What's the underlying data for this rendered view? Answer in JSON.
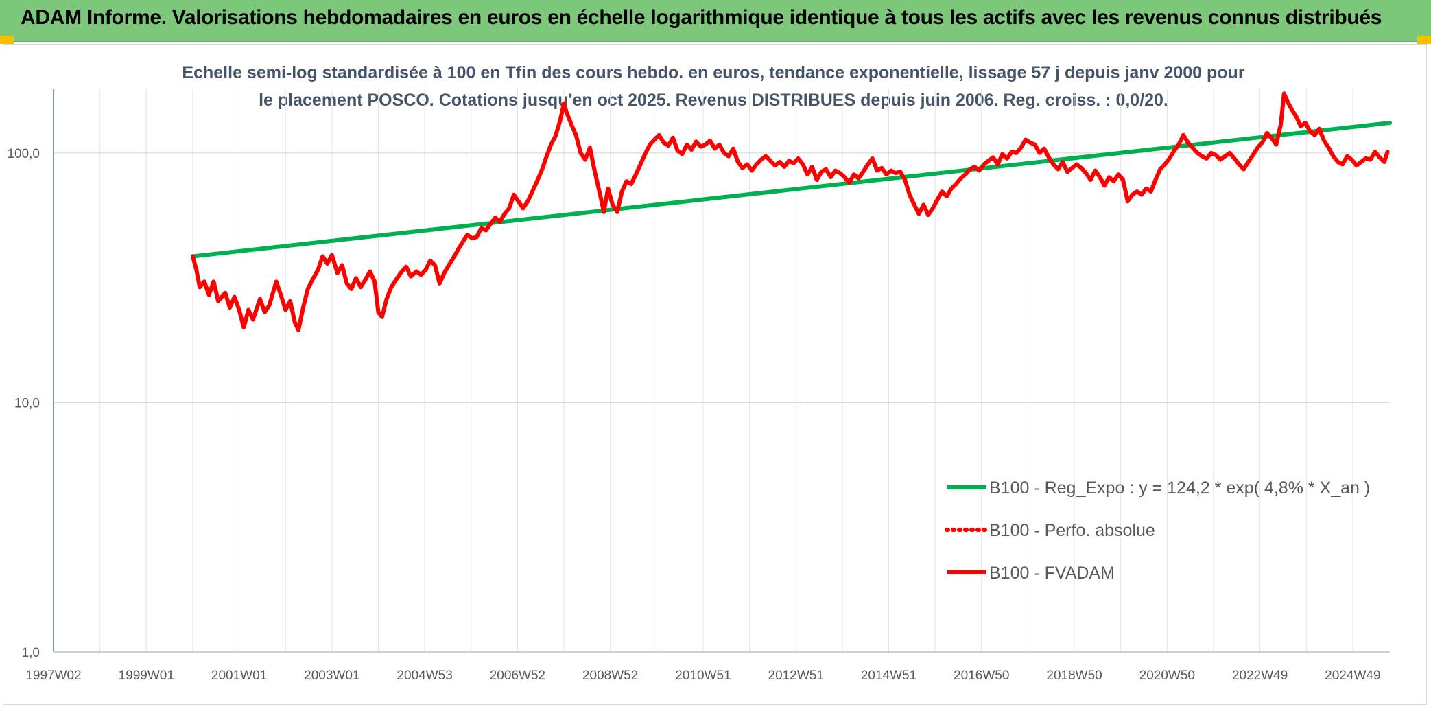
{
  "header": {
    "title": "ADAM Informe. Valorisations hebdomadaires en euros en échelle logarithmique identique à tous les actifs avec les revenus connus distribués",
    "background": "#7dc77a"
  },
  "chart_data": {
    "type": "line",
    "title": "Echelle semi-log standardisée à 100 en Tfin des cours hebdo. en euros, tendance exponentielle, lissage 57 j depuis janv 2000 pour le placement POSCO. Cotations jusqu'en oct 2025. Revenus DISTRIBUES depuis juin 2006. Reg. croiss. : 0,0/20.",
    "y_scale": "log",
    "ylim": [
      1,
      180
    ],
    "y_ticks": [
      "1,0",
      "10,0",
      "100,0"
    ],
    "xlim": [
      1997.0,
      2025.8
    ],
    "x_ticks": [
      {
        "label": "1997W02",
        "x": 1997.0
      },
      {
        "label": "1999W01",
        "x": 1999.0
      },
      {
        "label": "2001W01",
        "x": 2001.0
      },
      {
        "label": "2003W01",
        "x": 2003.0
      },
      {
        "label": "2004W53",
        "x": 2005.0
      },
      {
        "label": "2006W52",
        "x": 2007.0
      },
      {
        "label": "2008W52",
        "x": 2009.0
      },
      {
        "label": "2010W51",
        "x": 2011.0
      },
      {
        "label": "2012W51",
        "x": 2013.0
      },
      {
        "label": "2014W51",
        "x": 2015.0
      },
      {
        "label": "2016W50",
        "x": 2017.0
      },
      {
        "label": "2018W50",
        "x": 2019.0
      },
      {
        "label": "2020W50",
        "x": 2021.0
      },
      {
        "label": "2022W49",
        "x": 2023.0
      },
      {
        "label": "2024W49",
        "x": 2025.0
      }
    ],
    "grid": true,
    "legend_position": "bottom-right",
    "series": [
      {
        "name": "B100 - Reg_Expo : y = 124,2 * exp( 4,8% *  X_an )",
        "color": "#00b050",
        "style": "solid",
        "points": [
          [
            2000.0,
            38.5
          ],
          [
            2025.8,
            132.0
          ]
        ]
      },
      {
        "name": "B100 - Perfo. absolue",
        "color": "#ff0000",
        "style": "dotted",
        "points": []
      },
      {
        "name": "B100 - FVADAM",
        "color": "#ff0000",
        "style": "solid",
        "points": [
          [
            2000.0,
            38.5
          ],
          [
            2000.08,
            34.0
          ],
          [
            2000.15,
            29.0
          ],
          [
            2000.25,
            30.5
          ],
          [
            2000.35,
            27.0
          ],
          [
            2000.45,
            30.5
          ],
          [
            2000.55,
            25.5
          ],
          [
            2000.7,
            27.5
          ],
          [
            2000.8,
            24.0
          ],
          [
            2000.9,
            26.5
          ],
          [
            2001.0,
            23.5
          ],
          [
            2001.1,
            20.0
          ],
          [
            2001.2,
            23.5
          ],
          [
            2001.3,
            21.5
          ],
          [
            2001.45,
            26.0
          ],
          [
            2001.55,
            23.0
          ],
          [
            2001.65,
            24.5
          ],
          [
            2001.8,
            30.5
          ],
          [
            2001.9,
            27.0
          ],
          [
            2002.0,
            23.5
          ],
          [
            2002.1,
            25.5
          ],
          [
            2002.2,
            21.0
          ],
          [
            2002.28,
            19.5
          ],
          [
            2002.38,
            24.0
          ],
          [
            2002.48,
            28.5
          ],
          [
            2002.58,
            31.0
          ],
          [
            2002.7,
            34.0
          ],
          [
            2002.8,
            38.5
          ],
          [
            2002.9,
            36.0
          ],
          [
            2003.0,
            39.0
          ],
          [
            2003.12,
            33.0
          ],
          [
            2003.22,
            35.5
          ],
          [
            2003.32,
            30.0
          ],
          [
            2003.42,
            28.5
          ],
          [
            2003.52,
            31.5
          ],
          [
            2003.62,
            29.0
          ],
          [
            2003.72,
            31.0
          ],
          [
            2003.82,
            33.5
          ],
          [
            2003.92,
            30.5
          ],
          [
            2004.0,
            23.0
          ],
          [
            2004.08,
            22.0
          ],
          [
            2004.18,
            26.0
          ],
          [
            2004.28,
            29.0
          ],
          [
            2004.38,
            31.0
          ],
          [
            2004.48,
            33.0
          ],
          [
            2004.6,
            35.0
          ],
          [
            2004.7,
            32.0
          ],
          [
            2004.82,
            33.5
          ],
          [
            2004.92,
            32.5
          ],
          [
            2005.02,
            34.0
          ],
          [
            2005.12,
            37.0
          ],
          [
            2005.22,
            35.5
          ],
          [
            2005.32,
            30.0
          ],
          [
            2005.42,
            33.0
          ],
          [
            2005.52,
            35.5
          ],
          [
            2005.62,
            38.0
          ],
          [
            2005.72,
            41.0
          ],
          [
            2005.82,
            44.0
          ],
          [
            2005.92,
            47.0
          ],
          [
            2006.02,
            45.5
          ],
          [
            2006.12,
            46.0
          ],
          [
            2006.22,
            50.0
          ],
          [
            2006.32,
            49.0
          ],
          [
            2006.42,
            52.0
          ],
          [
            2006.52,
            55.0
          ],
          [
            2006.62,
            53.0
          ],
          [
            2006.72,
            57.0
          ],
          [
            2006.82,
            60.0
          ],
          [
            2006.92,
            68.0
          ],
          [
            2007.02,
            64.0
          ],
          [
            2007.12,
            60.0
          ],
          [
            2007.22,
            64.0
          ],
          [
            2007.32,
            70.0
          ],
          [
            2007.42,
            77.0
          ],
          [
            2007.52,
            85.0
          ],
          [
            2007.62,
            96.0
          ],
          [
            2007.72,
            108.0
          ],
          [
            2007.82,
            117.0
          ],
          [
            2007.92,
            135.0
          ],
          [
            2008.0,
            158.0
          ],
          [
            2008.06,
            145.0
          ],
          [
            2008.16,
            130.0
          ],
          [
            2008.26,
            118.0
          ],
          [
            2008.36,
            100.0
          ],
          [
            2008.46,
            94.0
          ],
          [
            2008.56,
            105.0
          ],
          [
            2008.66,
            85.0
          ],
          [
            2008.78,
            68.0
          ],
          [
            2008.86,
            58.0
          ],
          [
            2008.95,
            72.0
          ],
          [
            2009.05,
            62.0
          ],
          [
            2009.15,
            58.0
          ],
          [
            2009.25,
            70.0
          ],
          [
            2009.35,
            77.0
          ],
          [
            2009.45,
            75.0
          ],
          [
            2009.55,
            82.0
          ],
          [
            2009.65,
            90.0
          ],
          [
            2009.75,
            99.0
          ],
          [
            2009.85,
            108.0
          ],
          [
            2009.95,
            113.0
          ],
          [
            2010.05,
            118.0
          ],
          [
            2010.15,
            110.0
          ],
          [
            2010.25,
            107.0
          ],
          [
            2010.35,
            115.0
          ],
          [
            2010.45,
            102.0
          ],
          [
            2010.55,
            99.0
          ],
          [
            2010.65,
            108.0
          ],
          [
            2010.75,
            103.0
          ],
          [
            2010.85,
            111.0
          ],
          [
            2010.95,
            106.0
          ],
          [
            2011.05,
            108.0
          ],
          [
            2011.15,
            112.0
          ],
          [
            2011.25,
            104.0
          ],
          [
            2011.35,
            108.0
          ],
          [
            2011.45,
            100.0
          ],
          [
            2011.55,
            97.0
          ],
          [
            2011.65,
            104.0
          ],
          [
            2011.75,
            92.0
          ],
          [
            2011.85,
            87.0
          ],
          [
            2011.95,
            90.0
          ],
          [
            2012.05,
            85.0
          ],
          [
            2012.15,
            90.0
          ],
          [
            2012.25,
            94.0
          ],
          [
            2012.35,
            97.0
          ],
          [
            2012.45,
            93.0
          ],
          [
            2012.55,
            89.0
          ],
          [
            2012.65,
            92.0
          ],
          [
            2012.75,
            88.0
          ],
          [
            2012.85,
            93.0
          ],
          [
            2012.95,
            91.0
          ],
          [
            2013.05,
            95.0
          ],
          [
            2013.15,
            90.0
          ],
          [
            2013.25,
            82.0
          ],
          [
            2013.35,
            88.0
          ],
          [
            2013.45,
            78.0
          ],
          [
            2013.55,
            84.0
          ],
          [
            2013.65,
            86.0
          ],
          [
            2013.75,
            80.0
          ],
          [
            2013.85,
            85.0
          ],
          [
            2013.95,
            83.0
          ],
          [
            2014.05,
            80.0
          ],
          [
            2014.15,
            76.0
          ],
          [
            2014.25,
            82.0
          ],
          [
            2014.35,
            79.0
          ],
          [
            2014.45,
            84.0
          ],
          [
            2014.55,
            90.0
          ],
          [
            2014.65,
            95.0
          ],
          [
            2014.75,
            85.0
          ],
          [
            2014.85,
            87.0
          ],
          [
            2014.95,
            82.0
          ],
          [
            2015.05,
            85.0
          ],
          [
            2015.15,
            83.0
          ],
          [
            2015.25,
            84.0
          ],
          [
            2015.35,
            78.0
          ],
          [
            2015.45,
            68.0
          ],
          [
            2015.55,
            62.0
          ],
          [
            2015.65,
            57.0
          ],
          [
            2015.75,
            62.0
          ],
          [
            2015.85,
            56.5
          ],
          [
            2015.95,
            60.0
          ],
          [
            2016.05,
            65.0
          ],
          [
            2016.15,
            70.0
          ],
          [
            2016.25,
            67.0
          ],
          [
            2016.35,
            72.0
          ],
          [
            2016.45,
            75.0
          ],
          [
            2016.55,
            79.0
          ],
          [
            2016.65,
            82.0
          ],
          [
            2016.75,
            86.0
          ],
          [
            2016.85,
            88.0
          ],
          [
            2016.95,
            85.0
          ],
          [
            2017.05,
            90.0
          ],
          [
            2017.15,
            93.0
          ],
          [
            2017.25,
            96.0
          ],
          [
            2017.35,
            90.0
          ],
          [
            2017.45,
            99.0
          ],
          [
            2017.55,
            95.0
          ],
          [
            2017.65,
            101.0
          ],
          [
            2017.75,
            100.0
          ],
          [
            2017.85,
            105.0
          ],
          [
            2017.95,
            113.0
          ],
          [
            2018.05,
            110.0
          ],
          [
            2018.15,
            108.0
          ],
          [
            2018.25,
            100.0
          ],
          [
            2018.35,
            104.0
          ],
          [
            2018.45,
            96.0
          ],
          [
            2018.55,
            90.0
          ],
          [
            2018.65,
            86.0
          ],
          [
            2018.75,
            92.0
          ],
          [
            2018.85,
            84.0
          ],
          [
            2018.95,
            87.0
          ],
          [
            2019.05,
            90.0
          ],
          [
            2019.15,
            87.0
          ],
          [
            2019.25,
            83.0
          ],
          [
            2019.35,
            78.0
          ],
          [
            2019.45,
            85.0
          ],
          [
            2019.55,
            80.0
          ],
          [
            2019.65,
            74.0
          ],
          [
            2019.75,
            80.0
          ],
          [
            2019.85,
            77.0
          ],
          [
            2019.95,
            82.0
          ],
          [
            2020.05,
            78.0
          ],
          [
            2020.15,
            64.0
          ],
          [
            2020.25,
            68.0
          ],
          [
            2020.35,
            70.0
          ],
          [
            2020.45,
            68.0
          ],
          [
            2020.55,
            72.0
          ],
          [
            2020.65,
            70.0
          ],
          [
            2020.75,
            78.0
          ],
          [
            2020.85,
            86.0
          ],
          [
            2020.95,
            90.0
          ],
          [
            2021.05,
            95.0
          ],
          [
            2021.15,
            102.0
          ],
          [
            2021.25,
            108.0
          ],
          [
            2021.35,
            118.0
          ],
          [
            2021.45,
            110.0
          ],
          [
            2021.55,
            105.0
          ],
          [
            2021.65,
            100.0
          ],
          [
            2021.75,
            97.0
          ],
          [
            2021.85,
            95.0
          ],
          [
            2021.95,
            100.0
          ],
          [
            2022.05,
            98.0
          ],
          [
            2022.15,
            94.0
          ],
          [
            2022.25,
            97.0
          ],
          [
            2022.35,
            100.0
          ],
          [
            2022.45,
            95.0
          ],
          [
            2022.55,
            90.0
          ],
          [
            2022.65,
            86.0
          ],
          [
            2022.75,
            92.0
          ],
          [
            2022.85,
            98.0
          ],
          [
            2022.95,
            105.0
          ],
          [
            2023.05,
            110.0
          ],
          [
            2023.15,
            120.0
          ],
          [
            2023.25,
            115.0
          ],
          [
            2023.35,
            108.0
          ],
          [
            2023.45,
            130.0
          ],
          [
            2023.52,
            173.0
          ],
          [
            2023.6,
            160.0
          ],
          [
            2023.68,
            150.0
          ],
          [
            2023.78,
            140.0
          ],
          [
            2023.88,
            128.0
          ],
          [
            2023.98,
            132.0
          ],
          [
            2024.08,
            122.0
          ],
          [
            2024.18,
            118.0
          ],
          [
            2024.28,
            125.0
          ],
          [
            2024.38,
            112.0
          ],
          [
            2024.48,
            105.0
          ],
          [
            2024.58,
            97.0
          ],
          [
            2024.68,
            92.0
          ],
          [
            2024.78,
            90.0
          ],
          [
            2024.88,
            97.0
          ],
          [
            2024.98,
            94.0
          ],
          [
            2025.08,
            89.0
          ],
          [
            2025.18,
            92.0
          ],
          [
            2025.28,
            95.0
          ],
          [
            2025.38,
            94.0
          ],
          [
            2025.48,
            101.0
          ],
          [
            2025.58,
            96.0
          ],
          [
            2025.68,
            92.0
          ],
          [
            2025.75,
            101.0
          ]
        ]
      }
    ]
  }
}
